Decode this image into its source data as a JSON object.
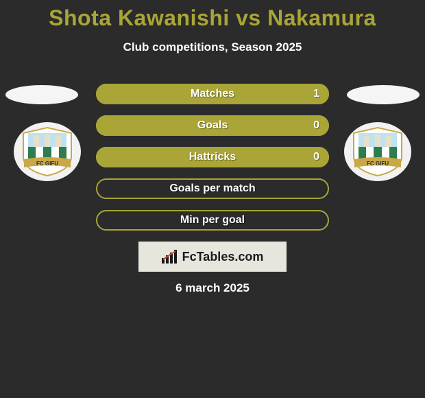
{
  "title": {
    "text": "Shota Kawanishi vs Nakamura",
    "color": "#a9a537",
    "fontsize": 32
  },
  "subtitle": "Club competitions, Season 2025",
  "date": "6 march 2025",
  "brand": "FcTables.com",
  "bars": {
    "fill_color": "#a9a537",
    "border_color": "#a9a537",
    "empty_color": "#2b2b2b",
    "rows": [
      {
        "label": "Matches",
        "right_value": "1",
        "filled": true
      },
      {
        "label": "Goals",
        "right_value": "0",
        "filled": true
      },
      {
        "label": "Hattricks",
        "right_value": "0",
        "filled": true
      },
      {
        "label": "Goals per match",
        "right_value": "",
        "filled": false
      },
      {
        "label": "Min per goal",
        "right_value": "",
        "filled": false
      }
    ]
  },
  "badge": {
    "club_text": "FC GIFU",
    "banner_color": "#c9a84a",
    "castle_color": "#e6e0c8",
    "stripes": [
      "#2e7d4f",
      "#ffffff",
      "#2e7d4f",
      "#ffffff",
      "#2e7d4f"
    ]
  },
  "colors": {
    "background": "#2b2b2b",
    "avatar_ellipse": "#f5f5f5",
    "text": "#ffffff"
  }
}
